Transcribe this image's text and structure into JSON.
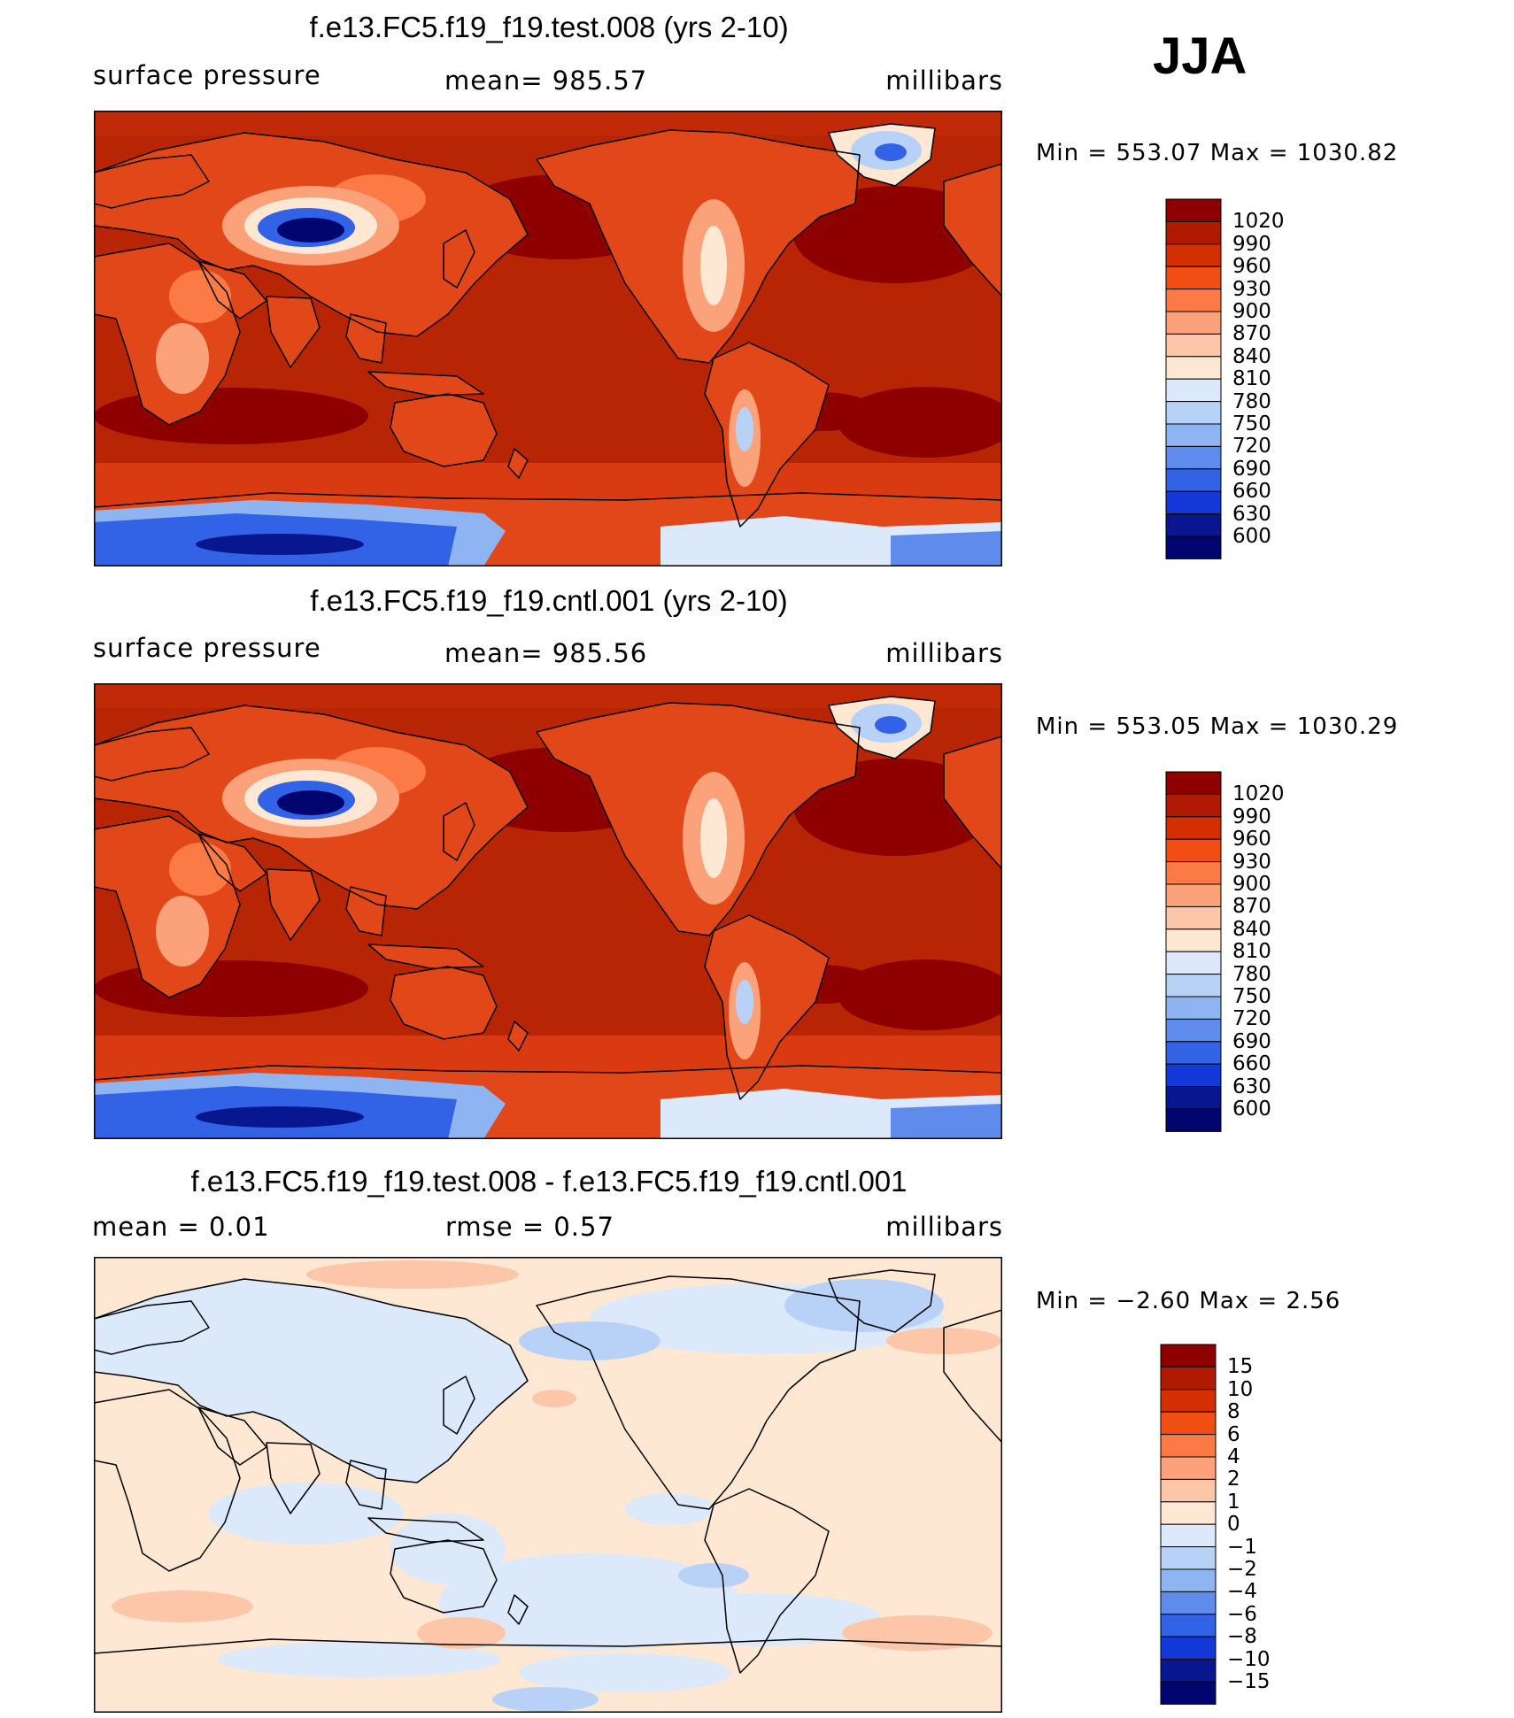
{
  "season": "JJA",
  "panels": [
    {
      "title": "f.e13.FC5.f19_f19.test.008 (yrs 2-10)",
      "left": "surface pressure",
      "center": "mean= 985.57",
      "right": "millibars",
      "minmax": "Min  =  553.07  Max  =  1030.82",
      "variant": "abs",
      "colorbar": {
        "labels": [
          "1020",
          "990",
          "960",
          "930",
          "900",
          "870",
          "840",
          "810",
          "780",
          "750",
          "720",
          "690",
          "660",
          "630",
          "600"
        ],
        "colors": [
          "#8e0000",
          "#b01a00",
          "#d42f00",
          "#f04e13",
          "#fb7a46",
          "#fca27b",
          "#fdc6a8",
          "#fee7d3",
          "#dce9fb",
          "#b8d2f7",
          "#8fb4f2",
          "#5f8cec",
          "#3262e6",
          "#1238d8",
          "#08178f",
          "#000570"
        ]
      }
    },
    {
      "title": "f.e13.FC5.f19_f19.cntl.001 (yrs 2-10)",
      "left": "surface pressure",
      "center": "mean= 985.56",
      "right": "millibars",
      "minmax": "Min  =  553.05  Max  =  1030.29",
      "variant": "abs",
      "colorbar": {
        "labels": [
          "1020",
          "990",
          "960",
          "930",
          "900",
          "870",
          "840",
          "810",
          "780",
          "750",
          "720",
          "690",
          "660",
          "630",
          "600"
        ],
        "colors": [
          "#8e0000",
          "#b01a00",
          "#d42f00",
          "#f04e13",
          "#fb7a46",
          "#fca27b",
          "#fdc6a8",
          "#fee7d3",
          "#dce9fb",
          "#b8d2f7",
          "#8fb4f2",
          "#5f8cec",
          "#3262e6",
          "#1238d8",
          "#08178f",
          "#000570"
        ]
      }
    },
    {
      "title": "f.e13.FC5.f19_f19.test.008 - f.e13.FC5.f19_f19.cntl.001",
      "left": "mean =     0.01",
      "center": "rmse =     0.57",
      "right": "millibars",
      "minmax": "Min  =   −2.60  Max  =     2.56",
      "variant": "diff",
      "colorbar": {
        "labels": [
          "15",
          "10",
          "8",
          "6",
          "4",
          "2",
          "1",
          "0",
          "−1",
          "−2",
          "−4",
          "−6",
          "−8",
          "−10",
          "−15"
        ],
        "colors": [
          "#8e0000",
          "#b01a00",
          "#d42f00",
          "#f04e13",
          "#fb7a46",
          "#fca27b",
          "#fdc6a8",
          "#fee7d3",
          "#dce9fb",
          "#b8d2f7",
          "#8fb4f2",
          "#5f8cec",
          "#3262e6",
          "#1238d8",
          "#08178f",
          "#000570"
        ]
      }
    }
  ]
}
